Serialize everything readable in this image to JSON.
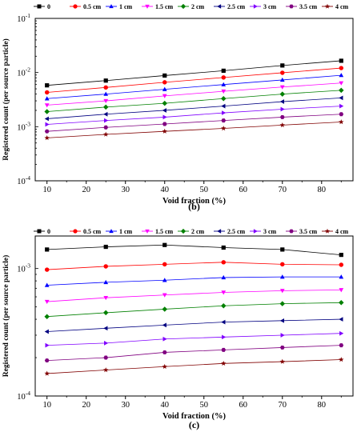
{
  "figure": {
    "panel_labels": [
      "(b)",
      "(c)"
    ]
  },
  "chart_data": [
    {
      "type": "line",
      "panel_label": "(b)",
      "xlabel": "Void fraction (%)",
      "ylabel": "Registered count (per source particle)",
      "y_scale": "log",
      "x": [
        10,
        25,
        40,
        55,
        70,
        85
      ],
      "xlim": [
        7,
        88
      ],
      "xticks": [
        10,
        20,
        30,
        40,
        50,
        60,
        70,
        80
      ],
      "ylim": [
        0.0001,
        0.1
      ],
      "yticks": [
        0.0001,
        0.001,
        0.01,
        0.1
      ],
      "ytick_labels": [
        {
          "base": "10",
          "exp": "-4"
        },
        {
          "base": "10",
          "exp": "-3"
        },
        {
          "base": "10",
          "exp": "-2"
        },
        {
          "base": "10",
          "exp": "-1"
        }
      ],
      "legend_position": "top",
      "series": [
        {
          "name": "0",
          "color": "#000000",
          "marker": "square",
          "values": [
            0.0058,
            0.0071,
            0.0088,
            0.0108,
            0.0135,
            0.0165
          ]
        },
        {
          "name": "0.5 cm",
          "color": "#ff0000",
          "marker": "circle",
          "values": [
            0.0043,
            0.0053,
            0.0066,
            0.0081,
            0.0099,
            0.0121
          ]
        },
        {
          "name": "1 cm",
          "color": "#0000ff",
          "marker": "triangle-up",
          "values": [
            0.0033,
            0.004,
            0.0049,
            0.006,
            0.0073,
            0.0089
          ]
        },
        {
          "name": "1.5 cm",
          "color": "#ff00ff",
          "marker": "triangle-down",
          "values": [
            0.0025,
            0.003,
            0.0037,
            0.0045,
            0.0054,
            0.0064
          ]
        },
        {
          "name": "2 cm",
          "color": "#008000",
          "marker": "diamond",
          "values": [
            0.0019,
            0.0023,
            0.0027,
            0.0033,
            0.004,
            0.0047
          ]
        },
        {
          "name": "2.5 cm",
          "color": "#000080",
          "marker": "triangle-left",
          "values": [
            0.0014,
            0.0017,
            0.002,
            0.0024,
            0.0029,
            0.0034
          ]
        },
        {
          "name": "3 cm",
          "color": "#8000ff",
          "marker": "triangle-right",
          "values": [
            0.0011,
            0.0013,
            0.0015,
            0.0018,
            0.0021,
            0.0024
          ]
        },
        {
          "name": "3.5 cm",
          "color": "#800080",
          "marker": "hexagon",
          "values": [
            0.00082,
            0.00097,
            0.00112,
            0.0013,
            0.0015,
            0.0017
          ]
        },
        {
          "name": "4 cm",
          "color": "#800000",
          "marker": "star",
          "values": [
            0.00062,
            0.00072,
            0.00082,
            0.00093,
            0.00107,
            0.00122
          ]
        }
      ]
    },
    {
      "type": "line",
      "panel_label": "(c)",
      "xlabel": "Void fraction (%)",
      "ylabel": "Registered count (per source particle)",
      "y_scale": "log",
      "x": [
        10,
        25,
        40,
        55,
        70,
        85
      ],
      "xlim": [
        7,
        88
      ],
      "xticks": [
        10,
        20,
        30,
        40,
        50,
        60,
        70,
        80
      ],
      "ylim": [
        0.0001,
        0.0018
      ],
      "yticks": [
        0.0001,
        0.001
      ],
      "ytick_labels": [
        {
          "base": "10",
          "exp": "-4"
        },
        {
          "base": "10",
          "exp": "-3"
        }
      ],
      "legend_position": "top",
      "series": [
        {
          "name": "0",
          "color": "#000000",
          "marker": "square",
          "values": [
            0.00141,
            0.00148,
            0.00153,
            0.00146,
            0.00141,
            0.00128
          ]
        },
        {
          "name": "0.5 cm",
          "color": "#ff0000",
          "marker": "circle",
          "values": [
            0.00098,
            0.00104,
            0.00108,
            0.00112,
            0.00108,
            0.00107
          ]
        },
        {
          "name": "1 cm",
          "color": "#0000ff",
          "marker": "triangle-up",
          "values": [
            0.00074,
            0.00078,
            0.00081,
            0.00085,
            0.00086,
            0.00086
          ]
        },
        {
          "name": "1.5 cm",
          "color": "#ff00ff",
          "marker": "triangle-down",
          "values": [
            0.00055,
            0.00059,
            0.00062,
            0.00065,
            0.00067,
            0.00068
          ]
        },
        {
          "name": "2 cm",
          "color": "#008000",
          "marker": "diamond",
          "values": [
            0.00042,
            0.00045,
            0.00048,
            0.00051,
            0.00053,
            0.00054
          ]
        },
        {
          "name": "2.5 cm",
          "color": "#000080",
          "marker": "triangle-left",
          "values": [
            0.00032,
            0.00034,
            0.00036,
            0.00038,
            0.00039,
            0.0004
          ]
        },
        {
          "name": "3 cm",
          "color": "#8000ff",
          "marker": "triangle-right",
          "values": [
            0.00025,
            0.00026,
            0.00028,
            0.00029,
            0.0003,
            0.00031
          ]
        },
        {
          "name": "3.5 cm",
          "color": "#800080",
          "marker": "hexagon",
          "values": [
            0.00019,
            0.0002,
            0.00022,
            0.00023,
            0.00024,
            0.00025
          ]
        },
        {
          "name": "4 cm",
          "color": "#800000",
          "marker": "star",
          "values": [
            0.00015,
            0.00016,
            0.00017,
            0.00018,
            0.000186,
            0.000193
          ]
        }
      ]
    }
  ]
}
